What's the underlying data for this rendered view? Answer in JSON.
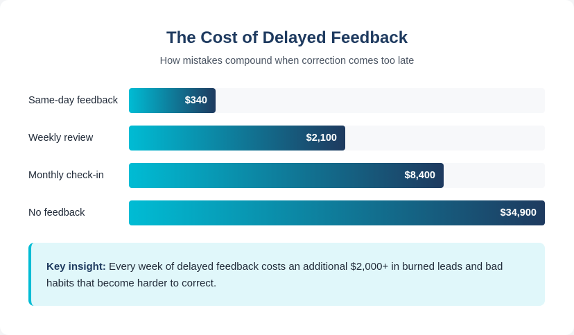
{
  "header": {
    "title": "The Cost of Delayed Feedback",
    "subtitle": "How mistakes compound when correction comes too late"
  },
  "colors": {
    "gradient_start": "#00bcd4",
    "gradient_end": "#1e3a5f",
    "track": "#f7f8fa",
    "insight_bg": "#e0f7fa",
    "insight_border": "#00bcd4"
  },
  "chart_data": {
    "type": "bar",
    "orientation": "horizontal",
    "title": "The Cost of Delayed Feedback",
    "subtitle": "How mistakes compound when correction comes too late",
    "categories": [
      "Same-day feedback",
      "Weekly review",
      "Monthly check-in",
      "No feedback"
    ],
    "values": [
      340,
      2100,
      8400,
      34900
    ],
    "value_labels": [
      "$340",
      "$2,100",
      "$8,400",
      "$34,900"
    ],
    "axis_scale": "log",
    "xlim": [
      100,
      34900
    ],
    "grid": false,
    "legend": "none"
  },
  "insight": {
    "label": "Key insight:",
    "text": " Every week of delayed feedback costs an additional $2,000+ in burned leads and bad habits that become harder to correct."
  }
}
